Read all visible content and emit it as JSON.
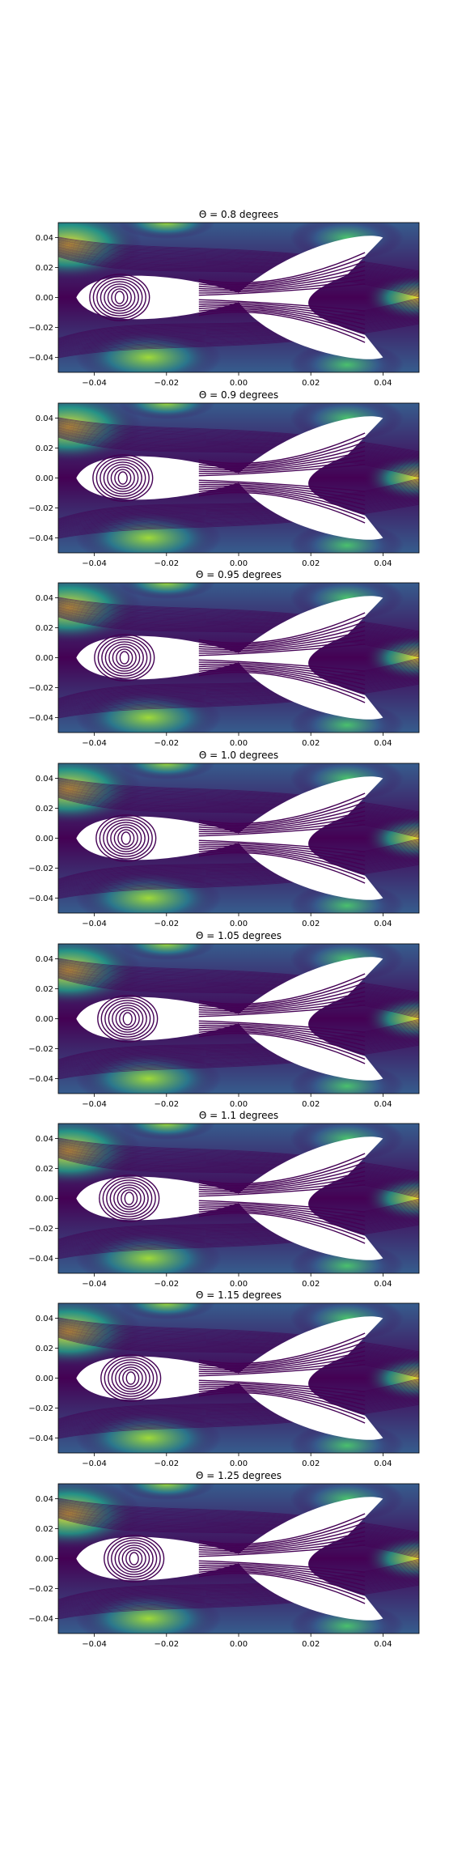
{
  "chart_data": [
    {
      "type": "contour",
      "title": "Θ = 0.8 degrees",
      "theta": 0.8,
      "xlim": [
        -0.05,
        0.05
      ],
      "ylim": [
        -0.05,
        0.05
      ],
      "xticks": [
        "−0.04",
        "−0.02",
        "0.00",
        "0.02",
        "0.04"
      ],
      "yticks": [
        "0.04",
        "0.02",
        "0.00",
        "−0.02",
        "−0.04"
      ],
      "colormap": "viridis",
      "grid": false
    },
    {
      "type": "contour",
      "title": "Θ = 0.9 degrees",
      "theta": 0.9,
      "xlim": [
        -0.05,
        0.05
      ],
      "ylim": [
        -0.05,
        0.05
      ],
      "xticks": [
        "−0.04",
        "−0.02",
        "0.00",
        "0.02",
        "0.04"
      ],
      "yticks": [
        "0.04",
        "0.02",
        "0.00",
        "−0.02",
        "−0.04"
      ],
      "colormap": "viridis",
      "grid": false
    },
    {
      "type": "contour",
      "title": "Θ = 0.95 degrees",
      "theta": 0.95,
      "xlim": [
        -0.05,
        0.05
      ],
      "ylim": [
        -0.05,
        0.05
      ],
      "xticks": [
        "−0.04",
        "−0.02",
        "0.00",
        "0.02",
        "0.04"
      ],
      "yticks": [
        "0.04",
        "0.02",
        "0.00",
        "−0.02",
        "−0.04"
      ],
      "colormap": "viridis",
      "grid": false
    },
    {
      "type": "contour",
      "title": "Θ = 1.0 degrees",
      "theta": 1.0,
      "xlim": [
        -0.05,
        0.05
      ],
      "ylim": [
        -0.05,
        0.05
      ],
      "xticks": [
        "−0.04",
        "−0.02",
        "0.00",
        "0.02",
        "0.04"
      ],
      "yticks": [
        "0.04",
        "0.02",
        "0.00",
        "−0.02",
        "−0.04"
      ],
      "colormap": "viridis",
      "grid": false
    },
    {
      "type": "contour",
      "title": "Θ = 1.05 degrees",
      "theta": 1.05,
      "xlim": [
        -0.05,
        0.05
      ],
      "ylim": [
        -0.05,
        0.05
      ],
      "xticks": [
        "−0.04",
        "−0.02",
        "0.00",
        "0.02",
        "0.04"
      ],
      "yticks": [
        "0.04",
        "0.02",
        "0.00",
        "−0.02",
        "−0.04"
      ],
      "colormap": "viridis",
      "grid": false
    },
    {
      "type": "contour",
      "title": "Θ = 1.1 degrees",
      "theta": 1.1,
      "xlim": [
        -0.05,
        0.05
      ],
      "ylim": [
        -0.05,
        0.05
      ],
      "xticks": [
        "−0.04",
        "−0.02",
        "0.00",
        "0.02",
        "0.04"
      ],
      "yticks": [
        "0.04",
        "0.02",
        "0.00",
        "−0.02",
        "−0.04"
      ],
      "colormap": "viridis",
      "grid": false
    },
    {
      "type": "contour",
      "title": "Θ = 1.15 degrees",
      "theta": 1.15,
      "xlim": [
        -0.05,
        0.05
      ],
      "ylim": [
        -0.05,
        0.05
      ],
      "xticks": [
        "−0.04",
        "−0.02",
        "0.00",
        "0.02",
        "0.04"
      ],
      "yticks": [
        "0.04",
        "0.02",
        "0.00",
        "−0.02",
        "−0.04"
      ],
      "colormap": "viridis",
      "grid": false
    },
    {
      "type": "contour",
      "title": "Θ = 1.25 degrees",
      "theta": 1.25,
      "xlim": [
        -0.05,
        0.05
      ],
      "ylim": [
        -0.05,
        0.05
      ],
      "xticks": [
        "−0.04",
        "−0.02",
        "0.00",
        "0.02",
        "0.04"
      ],
      "yticks": [
        "0.04",
        "0.02",
        "0.00",
        "−0.02",
        "−0.04"
      ],
      "colormap": "viridis",
      "grid": false
    }
  ],
  "colors": {
    "viridis": [
      "#440154",
      "#46327e",
      "#365c8d",
      "#277f8e",
      "#1fa187",
      "#4ac16d",
      "#a0da39",
      "#fde725"
    ],
    "contour_line": "#440154",
    "frame": "#000000"
  }
}
